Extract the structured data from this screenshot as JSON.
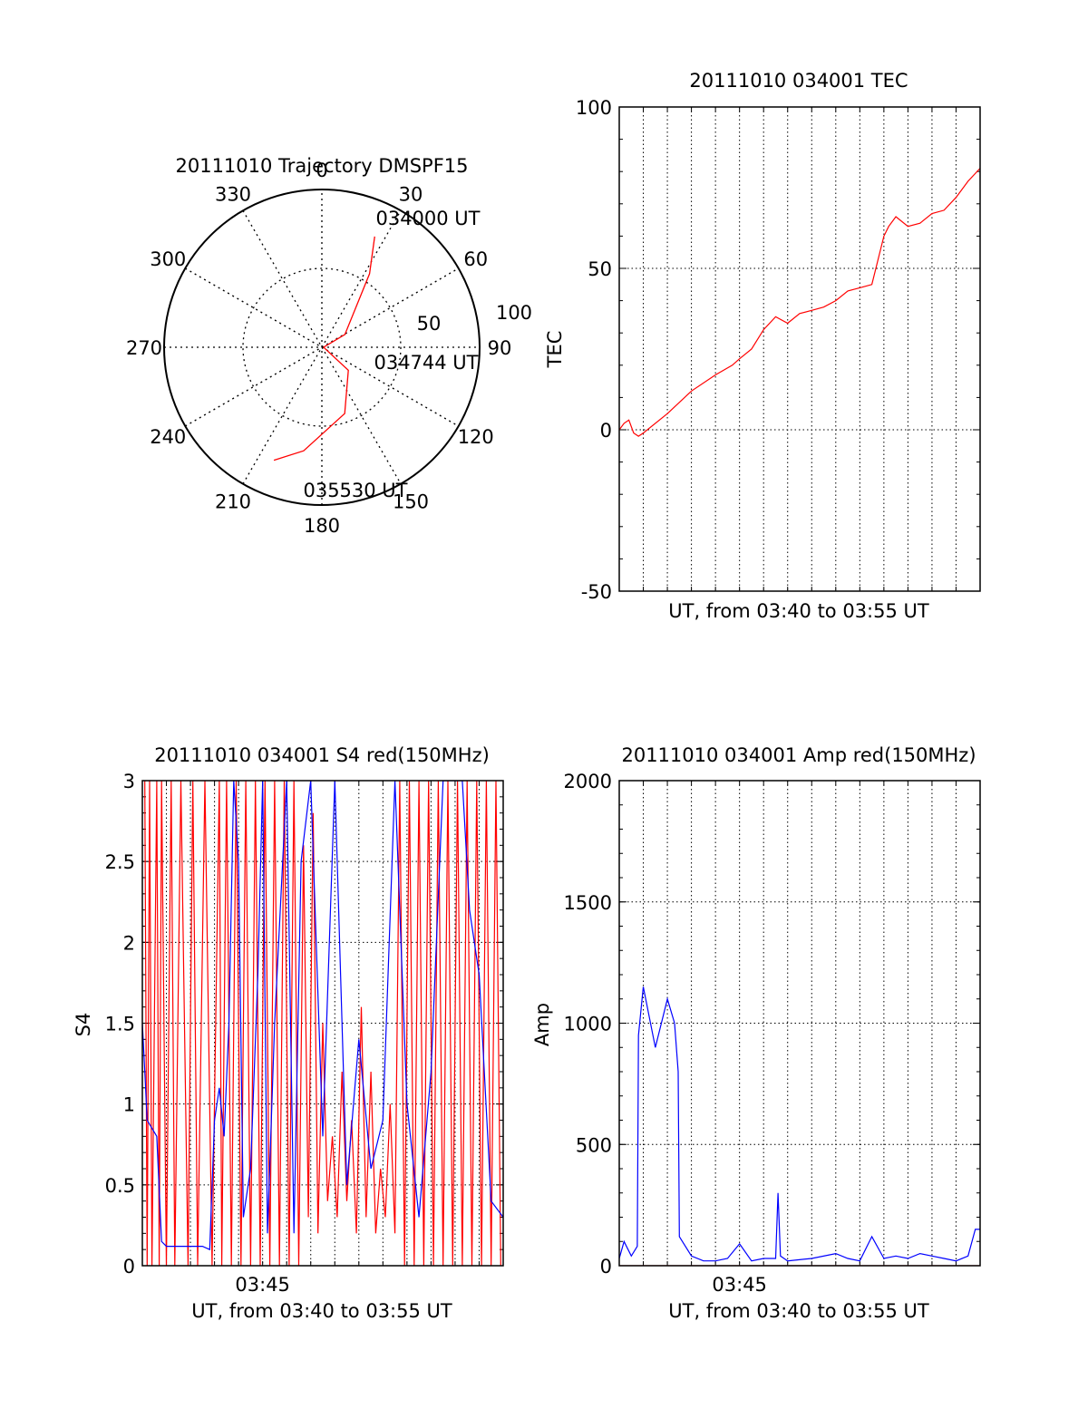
{
  "colors": {
    "red": "#ff0000",
    "blue": "#0000ff",
    "axis": "#000000",
    "grid": "#000000"
  },
  "chart_data": [
    {
      "type": "polar-line",
      "title": "20111010 Trajectory DMSPF15",
      "angle_labels": [
        "0",
        "30",
        "60",
        "90",
        "120",
        "150",
        "180",
        "210",
        "240",
        "270",
        "300",
        "330"
      ],
      "radial_labels": [
        "50",
        "100"
      ],
      "rlim": [
        0,
        100
      ],
      "grid": true,
      "annotations": [
        "034000 UT",
        "034744 UT",
        "035530 UT"
      ],
      "series": [
        {
          "color": "red",
          "points_az_el": [
            [
              25.5,
              20
            ],
            [
              33,
              40
            ],
            [
              61,
              75
            ],
            [
              90,
              89
            ],
            [
              131,
              70
            ],
            [
              161,
              50
            ],
            [
              190,
              30
            ],
            [
              203,
              20
            ]
          ]
        }
      ]
    },
    {
      "type": "line",
      "title": "20111010 034001 TEC",
      "xlabel": "UT, from 03:40 to 03:55 UT",
      "ylabel": "TEC",
      "xlim": [
        0,
        15
      ],
      "ylim": [
        -50,
        100
      ],
      "yticks": [
        "-50",
        "0",
        "50",
        "100"
      ],
      "grid": true,
      "series": [
        {
          "color": "red",
          "x": [
            0,
            0.2,
            0.4,
            0.6,
            0.8,
            1,
            2,
            3,
            4,
            4.7,
            5,
            5.5,
            6,
            6.5,
            7,
            7.5,
            8,
            8.5,
            9,
            9.5,
            10,
            10.5,
            11,
            11.2,
            11.5,
            12,
            12.5,
            13,
            13.5,
            14,
            14.5,
            15
          ],
          "y": [
            0,
            2,
            3,
            -1,
            -2,
            -1,
            5,
            12,
            17,
            20,
            22,
            25,
            31,
            35,
            33,
            36,
            37,
            38,
            40,
            43,
            44,
            45,
            60,
            63,
            66,
            63,
            64,
            67,
            68,
            72,
            77,
            81
          ]
        }
      ]
    },
    {
      "type": "line",
      "title": "20111010 034001 S4 red(150MHz)",
      "xlabel": "UT, from 03:40 to 03:55 UT",
      "ylabel": "S4",
      "xticks": [
        "03:45"
      ],
      "xlim": [
        0,
        15
      ],
      "ylim": [
        0,
        3
      ],
      "yticks": [
        "0",
        "0.5",
        "1",
        "1.5",
        "2",
        "2.5",
        "3"
      ],
      "grid": true,
      "series": [
        {
          "color": "red",
          "x": [
            0.1,
            0.2,
            0.3,
            0.4,
            0.6,
            0.7,
            0.8,
            1.0,
            1.2,
            1.35,
            1.6,
            1.9,
            2.1,
            2.3,
            2.6,
            2.9,
            3.2,
            3.3,
            3.5,
            3.7,
            3.9,
            4.1,
            4.3,
            4.5,
            4.7,
            4.9,
            5.1,
            5.3,
            5.5,
            5.7,
            5.9,
            6.1,
            6.3,
            6.5,
            6.7,
            6.9,
            7.1,
            7.3,
            7.5,
            7.7,
            7.9,
            8.1,
            8.3,
            8.5,
            8.7,
            8.9,
            9.1,
            9.3,
            9.5,
            9.7,
            9.9,
            10.1,
            10.3,
            10.5,
            10.7,
            10.9,
            11.1,
            11.3,
            11.5,
            11.7,
            11.9,
            12.1,
            12.3,
            12.5,
            12.7,
            12.9,
            13.1,
            13.3,
            13.5,
            13.7,
            13.9,
            14.1,
            14.3,
            14.5,
            14.7,
            14.9
          ],
          "y": [
            3,
            0,
            3,
            0,
            3,
            0,
            3,
            0,
            3,
            0,
            3,
            0,
            3,
            0,
            3,
            0,
            3,
            0,
            3,
            0,
            3,
            0,
            3,
            0,
            3,
            0,
            3,
            0,
            3,
            0,
            3,
            0,
            3,
            0,
            2.6,
            0.3,
            2.8,
            0.2,
            1.5,
            0.4,
            0.8,
            0.3,
            1.2,
            0.4,
            0.9,
            0.2,
            1.6,
            0.3,
            1.2,
            0.2,
            0.6,
            0.3,
            1.0,
            0.2,
            3,
            0,
            3,
            0,
            3,
            0,
            3,
            0,
            3,
            0,
            3,
            0,
            3,
            0,
            3,
            0,
            3,
            0,
            3,
            0,
            3,
            0
          ]
        },
        {
          "color": "blue",
          "x": [
            0,
            0.1,
            0.2,
            0.4,
            0.6,
            0.8,
            1,
            1.5,
            2,
            2.5,
            2.8,
            3.0,
            3.2,
            3.4,
            3.6,
            3.8,
            4,
            4.2,
            4.5,
            4.8,
            5.0,
            5.2,
            5.5,
            6,
            6.3,
            6.6,
            7,
            7.5,
            8,
            8.5,
            9,
            9.5,
            10,
            10.5,
            11,
            11.5,
            12,
            12.5,
            13,
            13.3,
            13.6,
            14,
            14.5,
            15
          ],
          "y": [
            1.5,
            1.2,
            0.9,
            0.85,
            0.8,
            0.15,
            0.12,
            0.12,
            0.12,
            0.12,
            0.1,
            0.9,
            1.1,
            0.8,
            1.5,
            3,
            2.5,
            0.3,
            0.6,
            1.8,
            3,
            0.2,
            1.5,
            3,
            0.2,
            2.5,
            3,
            0.8,
            3,
            0.5,
            1.4,
            0.6,
            0.9,
            3,
            1.0,
            0.3,
            1.2,
            3,
            3,
            3,
            2.2,
            1.8,
            0.4,
            0.3
          ]
        }
      ]
    },
    {
      "type": "line",
      "title": "20111010 034001 Amp red(150MHz)",
      "xlabel": "UT, from 03:40 to 03:55 UT",
      "ylabel": "Amp",
      "xticks": [
        "03:45"
      ],
      "xlim": [
        0,
        15
      ],
      "ylim": [
        0,
        2000
      ],
      "yticks": [
        "0",
        "500",
        "1000",
        "1500",
        "2000"
      ],
      "grid": true,
      "series": [
        {
          "color": "blue",
          "x": [
            0,
            0.2,
            0.5,
            0.75,
            0.8,
            1.0,
            1.5,
            2.0,
            2.3,
            2.45,
            2.5,
            3,
            3.5,
            4,
            4.5,
            5,
            5.5,
            6,
            6.5,
            6.6,
            6.7,
            7,
            8,
            9,
            9.5,
            10,
            10.5,
            11,
            11.5,
            12,
            12.5,
            13,
            13.5,
            14,
            14.5,
            14.8,
            15
          ],
          "y": [
            30,
            100,
            40,
            80,
            950,
            1150,
            900,
            1100,
            1000,
            800,
            120,
            40,
            20,
            20,
            30,
            90,
            20,
            30,
            30,
            300,
            40,
            20,
            30,
            50,
            30,
            20,
            120,
            30,
            40,
            30,
            50,
            40,
            30,
            20,
            40,
            150,
            150
          ]
        },
        {
          "color": "red",
          "x": [
            0,
            15
          ],
          "y": [
            0,
            0
          ]
        }
      ]
    }
  ]
}
